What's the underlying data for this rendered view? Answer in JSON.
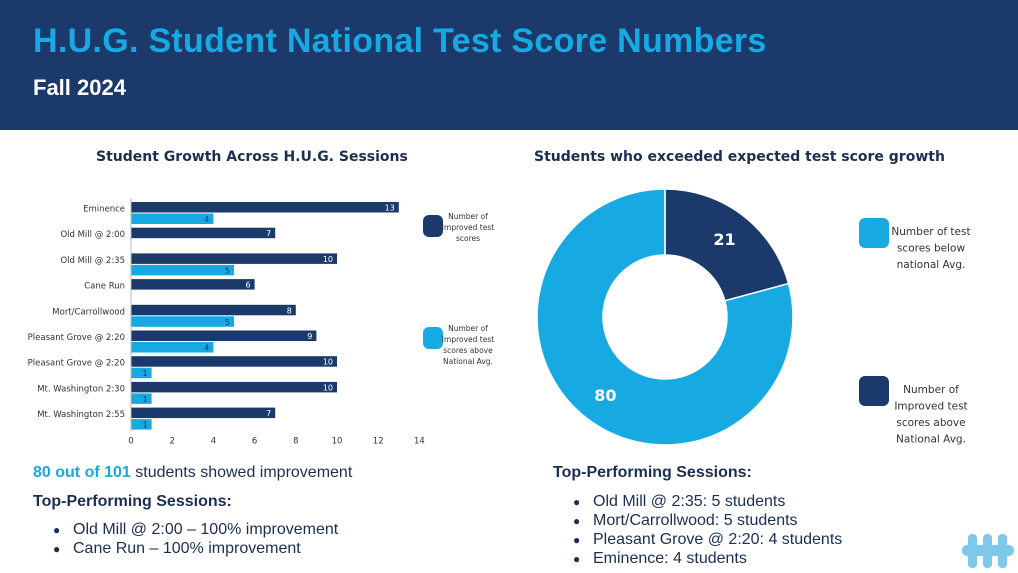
{
  "header": {
    "title": "H.U.G. Student National Test Score Numbers",
    "subtitle": "Fall 2024"
  },
  "chart_data": [
    {
      "type": "bar",
      "orientation": "horizontal",
      "title": "Student Growth Across H.U.G. Sessions",
      "categories": [
        "Eminence",
        "Old Mill @ 2:00",
        "Old Mill @ 2:35",
        "Cane Run",
        "Mort/Carrollwood",
        "Pleasant Grove @ 2:20",
        "Pleasant Grove @ 2:20",
        "Mt. Washington 2:30",
        "Mt. Washington 2:55"
      ],
      "series": [
        {
          "name": "Number of Improved test scores",
          "color": "#1b3a6b",
          "values": [
            13,
            7,
            10,
            6,
            8,
            9,
            10,
            10,
            7
          ]
        },
        {
          "name": "Number of Improved test scores above National Avg.",
          "color": "#17a9e1",
          "values": [
            4,
            null,
            5,
            null,
            5,
            4,
            1,
            1,
            1
          ]
        }
      ],
      "xlim": [
        0,
        14
      ],
      "xticks": [
        0,
        2,
        4,
        6,
        8,
        10,
        12,
        14
      ],
      "grid": false,
      "legend": "right"
    },
    {
      "type": "pie",
      "variant": "donut",
      "title": "Students who exceeded expected test score growth",
      "slices": [
        {
          "label": "Number of Improved test scores above National Avg.",
          "value": 21,
          "color": "#1b3a6b"
        },
        {
          "label": "Number of test scores below national Avg.",
          "value": 80,
          "color": "#17a9e1"
        }
      ],
      "legend": "right",
      "legend_order": [
        1,
        0
      ]
    }
  ],
  "summary": {
    "highlight": "80 out of 101",
    "rest": " students showed improvement"
  },
  "left_list": {
    "heading": "Top-Performing Sessions:",
    "items": [
      "Old Mill @ 2:00 – 100% improvement",
      "Cane Run – 100% improvement"
    ]
  },
  "right_list": {
    "heading": "Top-Performing Sessions:",
    "items": [
      "Old Mill @ 2:35: 5 students",
      "Mort/Carrollwood: 5 students",
      "Pleasant Grove @ 2:20: 4 students",
      "Eminence: 4 students"
    ]
  },
  "logo": {
    "icon": "hug-logo-icon",
    "color": "#7ec8ea"
  }
}
